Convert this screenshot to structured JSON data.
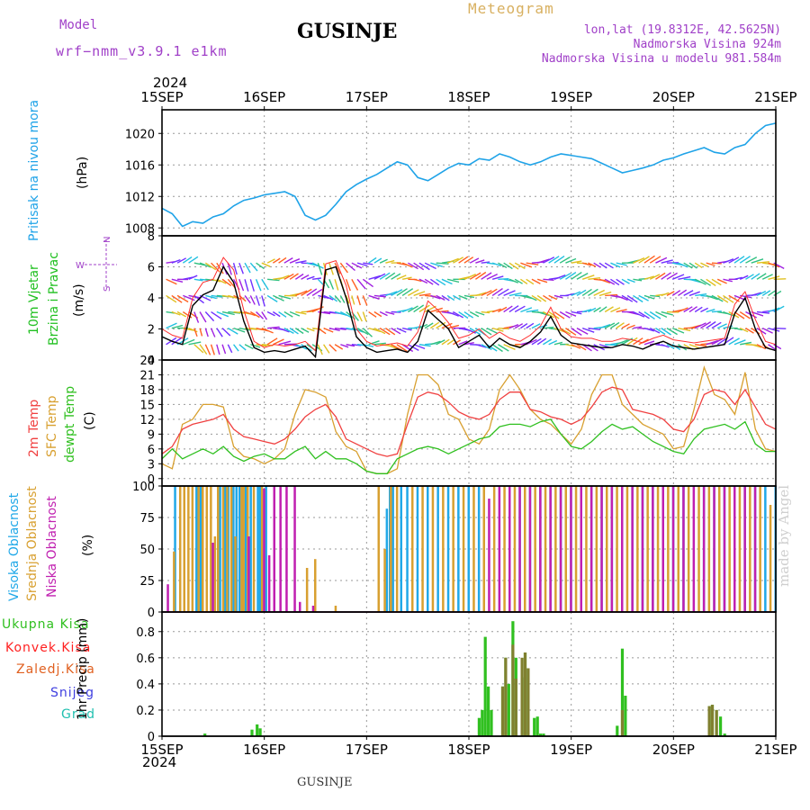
{
  "header": {
    "model_label": "Model",
    "model_name": "wrf−nmm_v3.9.1  e1km",
    "station": "GUSINJE",
    "meteogram": "Meteogram",
    "lonlat": "lon,lat (19.8312E, 42.5625N)",
    "elevation": "Nadmorska Visina 924m",
    "model_elevation": "Nadmorska Visina u modelu 981.584m",
    "year": "2024",
    "footer_station": "GUSINJE",
    "watermark": "made by Angel"
  },
  "time_axis": {
    "ticks": [
      "15SEP",
      "16SEP",
      "17SEP",
      "18SEP",
      "19SEP",
      "20SEP",
      "21SEP"
    ],
    "year": "2024"
  },
  "colors": {
    "pressure": "#1fa3e8",
    "wind_speed": "#000000",
    "gust": "#ff3030",
    "t2m": "#f04040",
    "tsfc": "#d8a030",
    "dewpt": "#30c020",
    "cloud_high": "#20a8e8",
    "cloud_mid": "#d8a030",
    "cloud_low": "#c020b0",
    "rain_total": "#30c020",
    "rain_conv": "#ff2020",
    "rain_frozen": "#e06020",
    "snow": "#4040e0",
    "graupel": "#20c0b0"
  },
  "chart_data": [
    {
      "type": "line",
      "panel": "pressure",
      "ylabel_1": "Pritisak na nivou mora",
      "ylabel_2": "(hPa)",
      "ylim": [
        1007,
        1023
      ],
      "yticks": [
        "1008",
        "1012",
        "1016",
        "1020"
      ],
      "x_days": [
        0,
        0.1,
        0.2,
        0.3,
        0.4,
        0.5,
        0.6,
        0.7,
        0.8,
        0.9,
        1.0,
        1.1,
        1.2,
        1.3,
        1.4,
        1.5,
        1.6,
        1.7,
        1.8,
        1.9,
        2.0,
        2.1,
        2.2,
        2.3,
        2.4,
        2.5,
        2.6,
        2.7,
        2.8,
        2.9,
        3.0,
        3.1,
        3.2,
        3.3,
        3.4,
        3.5,
        3.6,
        3.7,
        3.8,
        3.9,
        4.0,
        4.1,
        4.2,
        4.3,
        4.4,
        4.5,
        4.6,
        4.7,
        4.8,
        4.9,
        5.0,
        5.1,
        5.2,
        5.3,
        5.4,
        5.5,
        5.6,
        5.7,
        5.8,
        5.9,
        6.0
      ],
      "values": [
        1010.5,
        1009.8,
        1008.2,
        1008.8,
        1008.6,
        1009.4,
        1009.8,
        1010.8,
        1011.5,
        1011.8,
        1012.2,
        1012.4,
        1012.6,
        1012.0,
        1009.6,
        1009.0,
        1009.6,
        1011.0,
        1012.6,
        1013.5,
        1014.2,
        1014.8,
        1015.6,
        1016.4,
        1016.0,
        1014.4,
        1014.0,
        1014.8,
        1015.6,
        1016.2,
        1016.0,
        1016.8,
        1016.6,
        1017.4,
        1017.0,
        1016.4,
        1016.0,
        1016.4,
        1017.0,
        1017.4,
        1017.2,
        1017.0,
        1016.8,
        1016.2,
        1015.6,
        1015.0,
        1015.3,
        1015.6,
        1016.0,
        1016.6,
        1016.9,
        1017.4,
        1017.8,
        1018.2,
        1017.6,
        1017.4,
        1018.2,
        1018.6,
        1020.0,
        1021.0,
        1021.3
      ]
    },
    {
      "type": "line",
      "panel": "wind",
      "ylabel_1": "10m Vjetar",
      "ylabel_2": "Brzina i Pravac",
      "ylabel_3": "(m/s)",
      "compass": [
        "N",
        "E",
        "S",
        "W"
      ],
      "ylim": [
        0,
        8
      ],
      "yticks": [
        "0",
        "2",
        "4",
        "6",
        "8"
      ],
      "x_days": [
        0,
        0.1,
        0.2,
        0.3,
        0.4,
        0.5,
        0.6,
        0.7,
        0.8,
        0.9,
        1.0,
        1.1,
        1.2,
        1.3,
        1.4,
        1.5,
        1.6,
        1.7,
        1.8,
        1.9,
        2.0,
        2.1,
        2.2,
        2.3,
        2.4,
        2.5,
        2.6,
        2.7,
        2.8,
        2.9,
        3.0,
        3.1,
        3.2,
        3.3,
        3.4,
        3.5,
        3.6,
        3.7,
        3.8,
        3.9,
        4.0,
        4.1,
        4.2,
        4.3,
        4.4,
        4.5,
        4.6,
        4.7,
        4.8,
        4.9,
        5.0,
        5.1,
        5.2,
        5.3,
        5.4,
        5.5,
        5.6,
        5.7,
        5.8,
        5.9,
        6.0
      ],
      "series": [
        {
          "values": [
            1.5,
            1.2,
            1.0,
            3.5,
            4.2,
            4.5,
            6.0,
            5.0,
            2.5,
            0.8,
            0.5,
            0.6,
            0.5,
            0.7,
            0.9,
            0.2,
            5.8,
            6.0,
            4.0,
            1.5,
            0.8,
            0.5,
            0.6,
            0.7,
            0.5,
            1.2,
            3.2,
            2.6,
            2.0,
            0.8,
            1.2,
            1.6,
            0.8,
            1.4,
            1.0,
            0.8,
            1.2,
            1.8,
            2.8,
            1.6,
            1.1,
            1.0,
            0.9,
            0.8,
            0.8,
            1.0,
            0.9,
            0.7,
            1.0,
            1.2,
            0.9,
            0.8,
            0.7,
            0.8,
            0.9,
            1.0,
            3.0,
            4.0,
            2.0,
            0.8,
            0.6
          ]
        },
        {
          "values": [
            2.0,
            1.6,
            1.4,
            4.0,
            5.0,
            5.2,
            6.6,
            5.8,
            3.2,
            1.2,
            0.8,
            1.0,
            0.9,
            1.0,
            1.2,
            0.6,
            6.2,
            6.4,
            4.8,
            2.0,
            1.2,
            0.9,
            1.0,
            1.1,
            0.9,
            1.8,
            3.8,
            3.2,
            2.4,
            1.4,
            1.6,
            2.0,
            1.4,
            1.8,
            1.4,
            1.2,
            1.6,
            2.2,
            3.4,
            2.0,
            1.5,
            1.4,
            1.4,
            1.2,
            1.2,
            1.4,
            1.3,
            1.1,
            1.4,
            1.6,
            1.3,
            1.2,
            1.1,
            1.2,
            1.3,
            1.4,
            3.6,
            4.4,
            2.6,
            1.2,
            1.0
          ]
        }
      ]
    },
    {
      "type": "line",
      "panel": "temperature",
      "ylabel_1": "2m Temp",
      "ylabel_2": "SFC Temp",
      "ylabel_3": "dewpt Temp",
      "ylabel_4": "(C)",
      "ylim": [
        -1.5,
        24
      ],
      "yticks": [
        "0",
        "3",
        "6",
        "9",
        "12",
        "15",
        "18",
        "21",
        "24"
      ],
      "x_days": [
        0,
        0.1,
        0.2,
        0.3,
        0.4,
        0.5,
        0.6,
        0.7,
        0.8,
        0.9,
        1.0,
        1.1,
        1.2,
        1.3,
        1.4,
        1.5,
        1.6,
        1.7,
        1.8,
        1.9,
        2.0,
        2.1,
        2.2,
        2.3,
        2.4,
        2.5,
        2.6,
        2.7,
        2.8,
        2.9,
        3.0,
        3.1,
        3.2,
        3.3,
        3.4,
        3.5,
        3.6,
        3.7,
        3.8,
        3.9,
        4.0,
        4.1,
        4.2,
        4.3,
        4.4,
        4.5,
        4.6,
        4.7,
        4.8,
        4.9,
        5.0,
        5.1,
        5.2,
        5.3,
        5.4,
        5.5,
        5.6,
        5.7,
        5.8,
        5.9,
        6.0
      ],
      "series": [
        {
          "values": [
            5.0,
            6.5,
            10.0,
            11.0,
            11.5,
            12.0,
            13.0,
            10.0,
            8.5,
            8.0,
            7.5,
            7.0,
            8.0,
            10.0,
            12.5,
            14.0,
            15.0,
            12.5,
            8.0,
            7.0,
            6.0,
            5.0,
            4.5,
            5.0,
            11.0,
            16.5,
            17.5,
            17.0,
            15.5,
            13.5,
            12.5,
            12.0,
            13.0,
            16.0,
            17.5,
            17.5,
            14.0,
            13.5,
            12.5,
            12.0,
            11.0,
            12.0,
            14.5,
            17.5,
            18.5,
            18.0,
            14.0,
            13.5,
            13.0,
            12.0,
            10.0,
            9.5,
            12.0,
            17.0,
            18.0,
            17.5,
            15.0,
            18.0,
            14.5,
            11.0,
            10.0
          ]
        },
        {
          "values": [
            3.0,
            2.0,
            11.0,
            12.0,
            15.0,
            15.0,
            14.5,
            6.5,
            4.5,
            4.0,
            3.0,
            4.0,
            6.0,
            13.0,
            18.0,
            17.5,
            16.5,
            9.5,
            6.5,
            5.5,
            1.5,
            1.0,
            1.0,
            2.0,
            13.0,
            21.0,
            21.0,
            19.0,
            13.0,
            12.0,
            8.0,
            7.0,
            10.0,
            18.0,
            21.0,
            18.0,
            14.0,
            12.0,
            11.0,
            9.0,
            7.0,
            10.0,
            17.0,
            21.0,
            21.0,
            15.0,
            13.0,
            11.0,
            10.0,
            9.0,
            6.0,
            6.5,
            14.0,
            22.5,
            17.0,
            16.0,
            13.0,
            21.5,
            10.0,
            6.0,
            5.5
          ]
        },
        {
          "values": [
            4.0,
            6.0,
            4.0,
            5.0,
            6.0,
            5.0,
            6.5,
            4.5,
            3.5,
            4.5,
            5.0,
            4.0,
            4.0,
            5.5,
            6.5,
            4.0,
            5.5,
            4.0,
            4.0,
            3.0,
            1.5,
            1.0,
            1.0,
            4.0,
            5.0,
            6.0,
            6.5,
            6.0,
            5.0,
            6.0,
            7.0,
            8.0,
            8.5,
            10.5,
            11.0,
            11.0,
            10.5,
            11.5,
            12.0,
            9.0,
            6.5,
            6.0,
            7.5,
            9.5,
            11.0,
            10.0,
            10.5,
            9.0,
            7.5,
            6.5,
            5.5,
            5.0,
            8.0,
            10.0,
            10.5,
            11.0,
            10.0,
            11.5,
            7.0,
            5.5,
            5.5
          ]
        }
      ]
    },
    {
      "type": "bar",
      "panel": "clouds",
      "ylabel_1": "Visoka Oblacnost",
      "ylabel_2": "Srednja Oblacnost",
      "ylabel_3": "Niska Oblacnost",
      "ylabel_4": "(%)",
      "ylim": [
        0,
        100
      ],
      "yticks": [
        "0",
        "25",
        "50",
        "75",
        "100"
      ],
      "series": [
        {
          "x_days": [
            0.13,
            0.34,
            0.38,
            0.57,
            0.62,
            0.65,
            0.7,
            0.73,
            0.76,
            0.82,
            0.87,
            0.94,
            0.96,
            1.02,
            2.2,
            2.23,
            2.26,
            2.34,
            2.4,
            2.5,
            2.6,
            2.7,
            2.8,
            2.9,
            3.0,
            3.1,
            3.4,
            3.5,
            3.6,
            3.7,
            3.8,
            3.9,
            4.0,
            4.2,
            4.3,
            4.4,
            4.5,
            4.6,
            4.7,
            4.8,
            5.0,
            5.1,
            5.3,
            5.4,
            5.5,
            5.6,
            5.7,
            5.8,
            5.9,
            6.0
          ],
          "values": [
            100,
            100,
            100,
            100,
            100,
            100,
            100,
            100,
            100,
            100,
            100,
            100,
            100,
            100,
            82,
            100,
            100,
            100,
            100,
            100,
            100,
            100,
            100,
            100,
            100,
            100,
            100,
            100,
            100,
            100,
            100,
            100,
            100,
            100,
            100,
            100,
            100,
            100,
            100,
            100,
            100,
            100,
            100,
            100,
            100,
            100,
            100,
            100,
            100,
            100
          ]
        },
        {
          "x_days": [
            0.12,
            0.18,
            0.22,
            0.26,
            0.3,
            0.36,
            0.4,
            0.44,
            0.48,
            0.52,
            0.55,
            0.6,
            0.64,
            0.68,
            0.72,
            0.78,
            0.8,
            0.84,
            0.9,
            0.98,
            1.42,
            1.5,
            1.7,
            2.12,
            2.18,
            2.24,
            2.3,
            2.45,
            2.55,
            2.65,
            2.75,
            2.85,
            2.95,
            3.05,
            3.15,
            3.25,
            3.35,
            3.45,
            3.55,
            3.65,
            3.75,
            3.85,
            3.95,
            4.05,
            4.15,
            4.25,
            4.35,
            4.45,
            4.55,
            4.65,
            4.75,
            4.85,
            4.95,
            5.05,
            5.15,
            5.25,
            5.35,
            5.45,
            5.55,
            5.65,
            5.75,
            5.85,
            5.95
          ],
          "values": [
            48,
            100,
            100,
            100,
            100,
            100,
            100,
            100,
            100,
            60,
            100,
            100,
            100,
            100,
            60,
            100,
            100,
            100,
            100,
            100,
            35,
            42,
            5,
            100,
            50,
            100,
            100,
            100,
            100,
            100,
            100,
            100,
            100,
            100,
            100,
            100,
            100,
            100,
            100,
            100,
            100,
            100,
            100,
            100,
            100,
            100,
            100,
            100,
            100,
            100,
            100,
            100,
            100,
            100,
            100,
            100,
            100,
            100,
            100,
            100,
            100,
            100,
            85
          ]
        },
        {
          "x_days": [
            0.06,
            0.5,
            0.85,
            1.0,
            1.05,
            1.1,
            1.16,
            1.22,
            1.3,
            1.35,
            1.48,
            3.2,
            3.3,
            3.4,
            3.5,
            3.6,
            3.7,
            3.8,
            3.9,
            4.0,
            4.1,
            4.2,
            4.3,
            4.4,
            4.5,
            4.6,
            4.7,
            4.8,
            4.9,
            5.0,
            5.1,
            5.2,
            5.3,
            5.4,
            5.5,
            5.6,
            5.7,
            5.8
          ],
          "values": [
            22,
            55,
            60,
            98,
            45,
            100,
            100,
            100,
            100,
            8,
            5,
            90,
            100,
            100,
            100,
            100,
            100,
            100,
            100,
            100,
            100,
            100,
            100,
            100,
            100,
            100,
            100,
            100,
            100,
            100,
            100,
            100,
            100,
            100,
            100,
            100,
            100,
            100
          ]
        }
      ]
    },
    {
      "type": "bar",
      "panel": "precip",
      "legend": [
        "Ukupna Kisa",
        "Konvek.Kisa",
        "Zaledj.Kisa",
        "Snijeg",
        "Grad"
      ],
      "ylabel_1": "1hr Precip (mm)",
      "ylim": [
        0,
        0.95
      ],
      "yticks": [
        "0",
        "0.2",
        "0.4",
        "0.6",
        "0.8"
      ],
      "series": [
        {
          "x_days": [
            0.42,
            0.88,
            0.93,
            0.96,
            3.1,
            3.13,
            3.16,
            3.19,
            3.22,
            3.33,
            3.36,
            3.39,
            3.43,
            3.46,
            3.52,
            3.55,
            3.58,
            3.64,
            3.67,
            3.7,
            3.73,
            4.45,
            4.5,
            4.53,
            5.35,
            5.38,
            5.42,
            5.46,
            5.5
          ],
          "values": [
            0.02,
            0.05,
            0.09,
            0.06,
            0.14,
            0.2,
            0.76,
            0.38,
            0.2,
            0.38,
            0.6,
            0.4,
            0.88,
            0.6,
            0.45,
            0.64,
            0.52,
            0.14,
            0.15,
            0.02,
            0.02,
            0.08,
            0.67,
            0.31,
            0.23,
            0.24,
            0.2,
            0.15,
            0.02
          ]
        },
        {
          "x_days": [
            3.33,
            3.36,
            3.43,
            3.46,
            3.52,
            3.55,
            3.58,
            4.5,
            5.35,
            5.38,
            5.42
          ],
          "values": [
            0.38,
            0.6,
            0.7,
            0.44,
            0.6,
            0.64,
            0.52,
            0.2,
            0.23,
            0.24,
            0.2
          ]
        }
      ]
    }
  ]
}
